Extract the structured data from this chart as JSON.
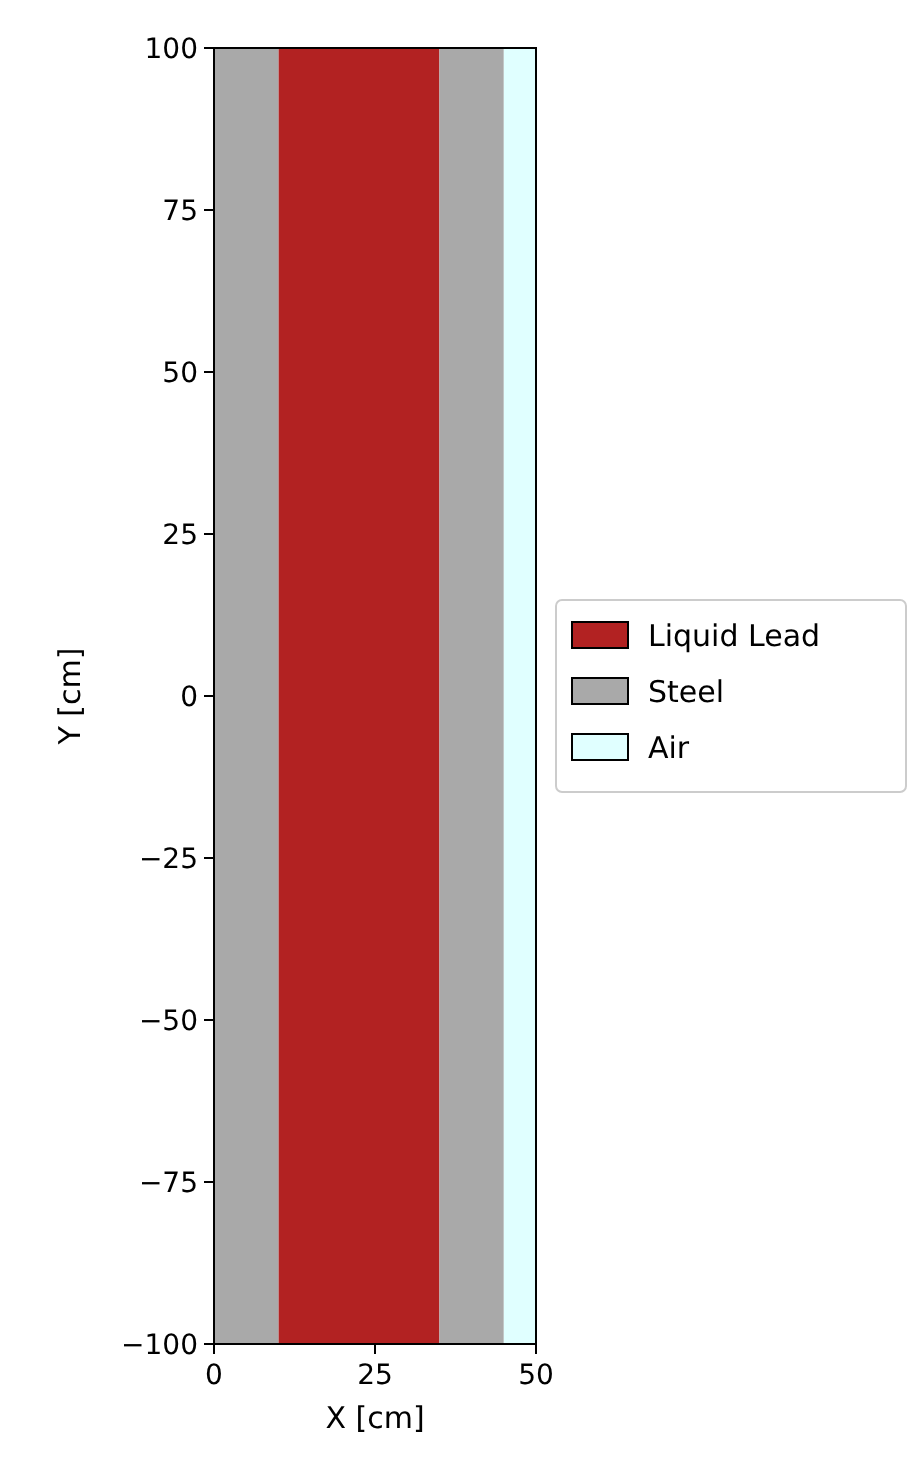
{
  "chart_data": {
    "type": "histogram",
    "xlabel": "X [cm]",
    "ylabel": "Y [cm]",
    "xlim": [
      0,
      50
    ],
    "ylim": [
      -100,
      100
    ],
    "xticks": [
      0,
      25,
      50
    ],
    "yticks": [
      -100,
      -75,
      -50,
      -25,
      0,
      25,
      50,
      75,
      100
    ],
    "grid": false,
    "legend": "right",
    "bins": [
      0,
      10,
      35,
      45,
      50
    ],
    "series": [
      {
        "name": "Liquid Lead",
        "color": "#b22222",
        "values": [
          null,
          200,
          null,
          null
        ],
        "base": [
          null,
          -100,
          null,
          null
        ]
      },
      {
        "name": "Steel",
        "color": "#a9a9a9",
        "values": [
          200,
          null,
          200,
          null
        ],
        "base": [
          -100,
          null,
          -100,
          null
        ]
      },
      {
        "name": "Air",
        "color": "#e0ffff",
        "values": [
          null,
          null,
          null,
          200
        ],
        "base": [
          null,
          null,
          null,
          -100
        ]
      }
    ]
  }
}
